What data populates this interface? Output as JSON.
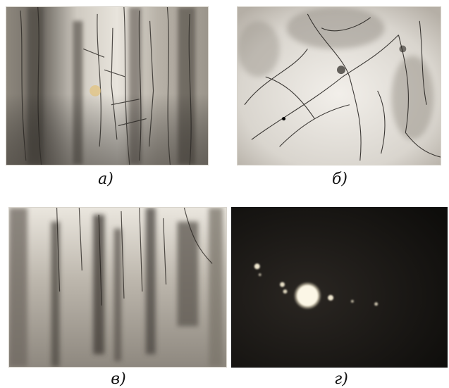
{
  "figure": {
    "panels": [
      {
        "id": "a",
        "caption": "а)",
        "kind": "micrograph-dislocations-vertical"
      },
      {
        "id": "b",
        "caption": "б)",
        "kind": "micrograph-dislocation-network"
      },
      {
        "id": "c",
        "caption": "в)",
        "kind": "micrograph-dislocation-walls"
      },
      {
        "id": "d",
        "caption": "г)",
        "kind": "electron-diffraction-pattern"
      }
    ]
  },
  "colors": {
    "paper": "#ffffff",
    "micrograph_light": "#e9e5dd",
    "micrograph_dark": "#2a2724",
    "diffraction_bg": "#141210",
    "diffraction_spot": "#fbf3da"
  }
}
